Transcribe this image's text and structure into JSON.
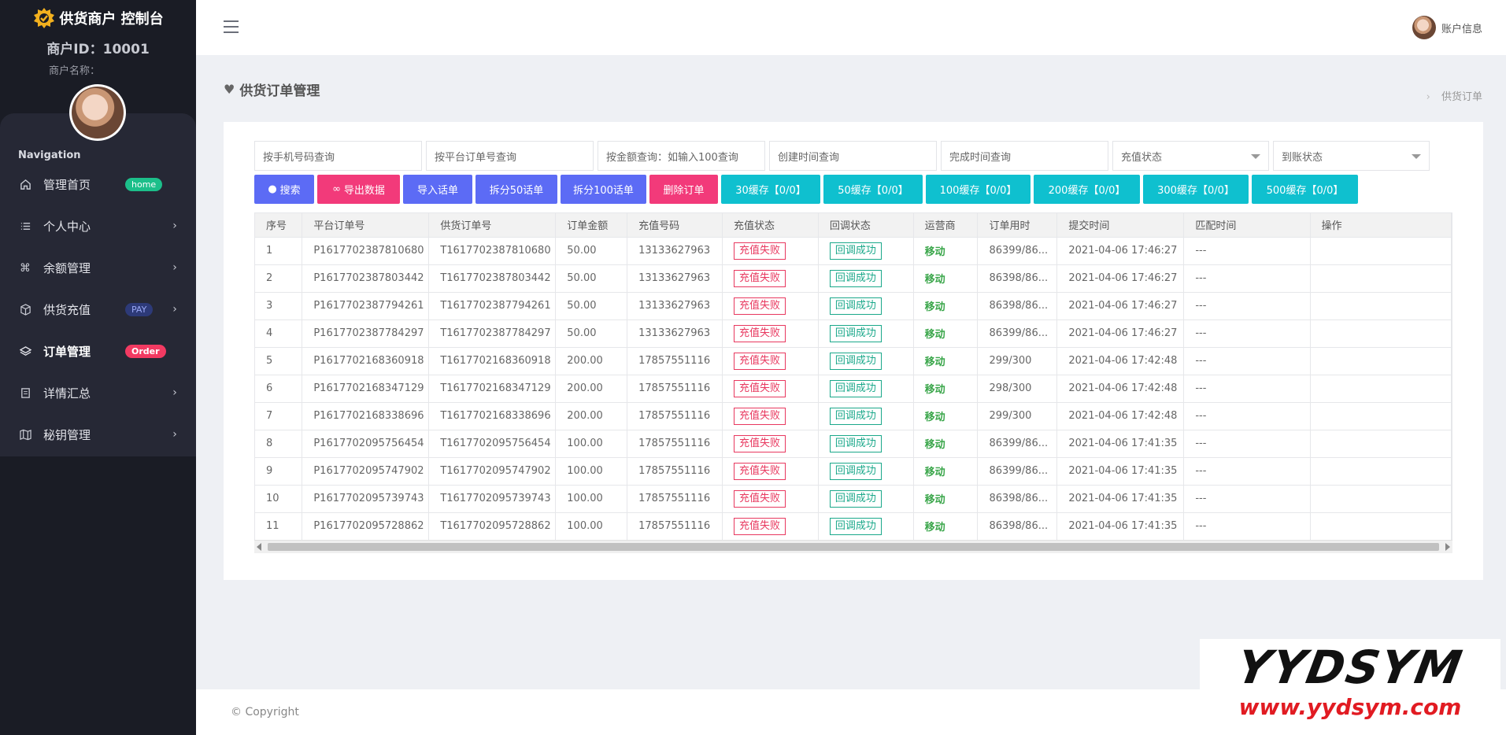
{
  "sidebar": {
    "brand": "供货商户 控制台",
    "merchant_id": "商户ID：10001",
    "merchant_name": "商户名称：",
    "nav_title": "Navigation",
    "items": [
      {
        "label": "管理首页",
        "icon": "home-icon",
        "badge": "home"
      },
      {
        "label": "个人中心",
        "icon": "list-icon"
      },
      {
        "label": "余额管理",
        "icon": "command-icon"
      },
      {
        "label": "供货充值",
        "icon": "box-icon",
        "badge": "PAY"
      },
      {
        "label": "订单管理",
        "icon": "layers-icon",
        "badge": "Order"
      },
      {
        "label": "详情汇总",
        "icon": "document-icon"
      },
      {
        "label": "秘钥管理",
        "icon": "map-icon"
      }
    ]
  },
  "topbar": {
    "account_label": "账户信息"
  },
  "page": {
    "title": "供货订单管理",
    "breadcrumb": "供货订单"
  },
  "filters": {
    "phone_placeholder": "按手机号码查询",
    "platform_order_placeholder": "按平台订单号查询",
    "amount_placeholder": "按金额查询：如输入100查询",
    "created_placeholder": "创建时间查询",
    "completed_placeholder": "完成时间查询",
    "recharge_status": "充值状态",
    "arrival_status": "到账状态"
  },
  "actions": {
    "search": "搜索",
    "export": "导出数据",
    "import": "导入话单",
    "split50": "拆分50话单",
    "split100": "拆分100话单",
    "delete": "删除订单",
    "cache30": "30缓存【0/0】",
    "cache50": "50缓存【0/0】",
    "cache100": "100缓存【0/0】",
    "cache200": "200缓存【0/0】",
    "cache300": "300缓存【0/0】",
    "cache500": "500缓存【0/0】"
  },
  "table": {
    "headers": [
      "序号",
      "平台订单号",
      "供货订单号",
      "订单金额",
      "充值号码",
      "充值状态",
      "回调状态",
      "运营商",
      "订单用时",
      "提交时间",
      "匹配时间",
      "操作"
    ],
    "rows": [
      [
        "1",
        "P1617702387810680",
        "T1617702387810680",
        "50.00",
        "13133627963",
        "充值失败",
        "回调成功",
        "移动",
        "86399/86...",
        "2021-04-06 17:46:27",
        "---",
        ""
      ],
      [
        "2",
        "P1617702387803442",
        "T1617702387803442",
        "50.00",
        "13133627963",
        "充值失败",
        "回调成功",
        "移动",
        "86398/86...",
        "2021-04-06 17:46:27",
        "---",
        ""
      ],
      [
        "3",
        "P1617702387794261",
        "T1617702387794261",
        "50.00",
        "13133627963",
        "充值失败",
        "回调成功",
        "移动",
        "86398/86...",
        "2021-04-06 17:46:27",
        "---",
        ""
      ],
      [
        "4",
        "P1617702387784297",
        "T1617702387784297",
        "50.00",
        "13133627963",
        "充值失败",
        "回调成功",
        "移动",
        "86399/86...",
        "2021-04-06 17:46:27",
        "---",
        ""
      ],
      [
        "5",
        "P1617702168360918",
        "T1617702168360918",
        "200.00",
        "17857551116",
        "充值失败",
        "回调成功",
        "移动",
        "299/300",
        "2021-04-06 17:42:48",
        "---",
        ""
      ],
      [
        "6",
        "P1617702168347129",
        "T1617702168347129",
        "200.00",
        "17857551116",
        "充值失败",
        "回调成功",
        "移动",
        "298/300",
        "2021-04-06 17:42:48",
        "---",
        ""
      ],
      [
        "7",
        "P1617702168338696",
        "T1617702168338696",
        "200.00",
        "17857551116",
        "充值失败",
        "回调成功",
        "移动",
        "299/300",
        "2021-04-06 17:42:48",
        "---",
        ""
      ],
      [
        "8",
        "P1617702095756454",
        "T1617702095756454",
        "100.00",
        "17857551116",
        "充值失败",
        "回调成功",
        "移动",
        "86399/86...",
        "2021-04-06 17:41:35",
        "---",
        ""
      ],
      [
        "9",
        "P1617702095747902",
        "T1617702095747902",
        "100.00",
        "17857551116",
        "充值失败",
        "回调成功",
        "移动",
        "86399/86...",
        "2021-04-06 17:41:35",
        "---",
        ""
      ],
      [
        "10",
        "P1617702095739743",
        "T1617702095739743",
        "100.00",
        "17857551116",
        "充值失败",
        "回调成功",
        "移动",
        "86398/86...",
        "2021-04-06 17:41:35",
        "---",
        ""
      ],
      [
        "11",
        "P1617702095728862",
        "T1617702095728862",
        "100.00",
        "17857551116",
        "充值失败",
        "回调成功",
        "移动",
        "86398/86...",
        "2021-04-06 17:41:35",
        "---",
        ""
      ]
    ]
  },
  "footer": {
    "copyright": "© Copyright"
  },
  "watermark": {
    "logo": "YYDSYM",
    "url": "www.yydsym.com"
  },
  "colors": {
    "sidebar_bg": "#1a1c25",
    "btn_blue": "#5c6bf5",
    "btn_pink": "#f23a7a",
    "btn_cyan": "#0fc0cf",
    "status_fail": "#e8385f",
    "status_ok": "#1aa88a",
    "carrier": "#3aa64a"
  }
}
